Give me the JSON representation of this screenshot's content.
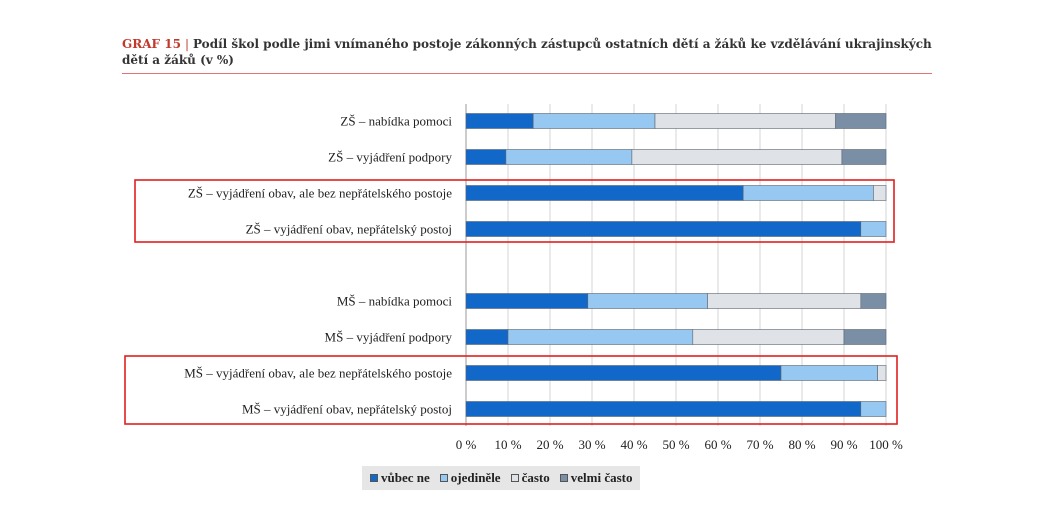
{
  "header": {
    "graf_label": "GRAF 15",
    "separator": "|",
    "title": "Podíl škol podle jimi vnímaného postoje zákonných zástupců ostatních dětí a žáků ke vzdělávání ukrajinských dětí a žáků (v %)"
  },
  "colors": {
    "accent": "#c0392b",
    "highlight_box": "#e02020",
    "series": [
      "#1168c8",
      "#97c8f2",
      "#dfe3e8",
      "#7a8ea6"
    ]
  },
  "chart_data": {
    "type": "bar",
    "orientation": "horizontal",
    "stacked": "percent",
    "categories": [
      "ZŠ – nabídka pomoci",
      "ZŠ – vyjádření podpory",
      "ZŠ – vyjádření obav, ale bez nepřátelského postoje",
      "ZŠ – vyjádření obav, nepřátelský postoj",
      "MŠ – nabídka pomoci",
      "MŠ – vyjádření podpory",
      "MŠ – vyjádření obav, ale bez nepřátelského postoje",
      "MŠ – vyjádření obav, nepřátelský postoj"
    ],
    "series": [
      {
        "name": "vůbec ne",
        "values": [
          16,
          9.5,
          66,
          94,
          29,
          10,
          75,
          94
        ]
      },
      {
        "name": "ojediněle",
        "values": [
          29,
          30,
          31,
          6,
          28.5,
          44,
          23,
          6
        ]
      },
      {
        "name": "často",
        "values": [
          43,
          50,
          3,
          0,
          36.5,
          36,
          2,
          0
        ]
      },
      {
        "name": "velmi často",
        "values": [
          12,
          10.5,
          0,
          0,
          6,
          10,
          0,
          0
        ]
      }
    ],
    "xlim": [
      0,
      100
    ],
    "x_ticks": [
      "0 %",
      "10 %",
      "20 %",
      "30 %",
      "40 %",
      "50 %",
      "60 %",
      "70 %",
      "80 %",
      "90 %",
      "100 %"
    ],
    "grid": true,
    "legend_position": "bottom",
    "highlighted_groups": [
      [
        2,
        3
      ],
      [
        6,
        7
      ]
    ]
  }
}
